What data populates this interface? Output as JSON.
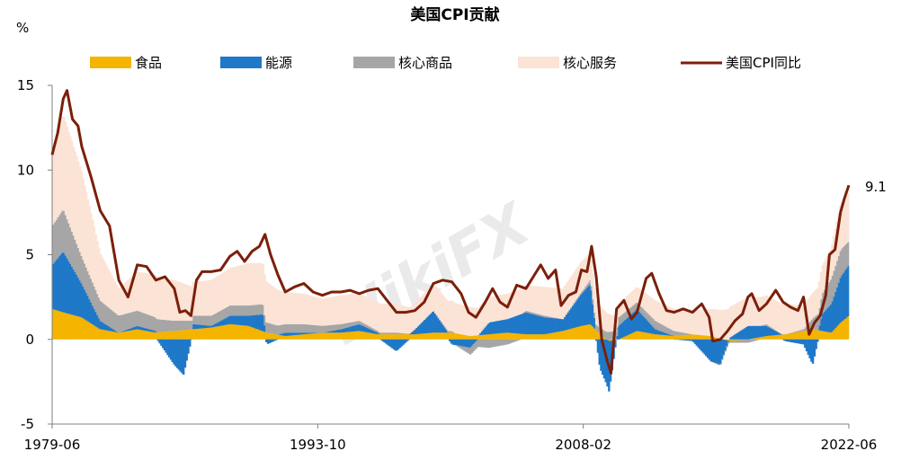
{
  "chart_data": {
    "type": "area",
    "title": "美国CPI贡献",
    "ylabel": "%",
    "ylim": [
      -5,
      15
    ],
    "yticks": [
      "15",
      "10",
      "5",
      "0",
      "-5"
    ],
    "xticks": [
      "1979-06",
      "1993-10",
      "2008-02",
      "2022-06"
    ],
    "x_start": "1979-06",
    "x_end": "2022-06",
    "legend": [
      {
        "name": "食品",
        "color": "#f5b400"
      },
      {
        "name": "能源",
        "color": "#1f78c8"
      },
      {
        "name": "核心商品",
        "color": "#a6a6a6"
      },
      {
        "name": "核心服务",
        "color": "#fbe3d6"
      },
      {
        "name": "美国CPI同比",
        "color": "#7b1f0a"
      }
    ],
    "annotation": "9.1",
    "watermark": "WikiFX",
    "series": [
      {
        "name": "食品",
        "color": "#f5b400",
        "x": [
          1979.4,
          1980,
          1981,
          1982,
          1983,
          1984,
          1985,
          1986,
          1987,
          1988,
          1989,
          1990,
          1991,
          1992,
          1993,
          1994,
          1995,
          1996,
          1997,
          1998,
          1999,
          2000,
          2001,
          2002,
          2003,
          2004,
          2005,
          2006,
          2007,
          2008,
          2008.5,
          2009,
          2009.5,
          2010,
          2011,
          2012,
          2013,
          2014,
          2015,
          2016,
          2017,
          2018,
          2019,
          2020,
          2020.5,
          2021,
          2021.5,
          2022,
          2022.45
        ],
        "values": [
          1.8,
          1.6,
          1.3,
          0.6,
          0.4,
          0.6,
          0.4,
          0.5,
          0.6,
          0.7,
          0.9,
          0.8,
          0.4,
          0.2,
          0.3,
          0.4,
          0.4,
          0.5,
          0.3,
          0.3,
          0.3,
          0.4,
          0.4,
          0.2,
          0.3,
          0.4,
          0.3,
          0.3,
          0.5,
          0.8,
          0.9,
          0.3,
          -0.1,
          0.0,
          0.5,
          0.3,
          0.2,
          0.3,
          0.2,
          -0.1,
          0.0,
          0.2,
          0.3,
          0.5,
          0.6,
          0.5,
          0.4,
          1.0,
          1.4
        ]
      },
      {
        "name": "能源",
        "color": "#1f78c8",
        "x": [
          1979.4,
          1980,
          1981,
          1982,
          1983,
          1984,
          1985,
          1986,
          1986.5,
          1987,
          1988,
          1989,
          1990,
          1990.8,
          1991,
          1992,
          1993,
          1994,
          1995,
          1996,
          1997,
          1998,
          1999,
          2000,
          2001,
          2002,
          2003,
          2004,
          2005,
          2006,
          2007,
          2008,
          2008.5,
          2009,
          2009.5,
          2010,
          2011,
          2012,
          2013,
          2014,
          2015,
          2015.5,
          2016,
          2017,
          2018,
          2019,
          2020,
          2020.5,
          2021,
          2021.5,
          2022,
          2022.45
        ],
        "values": [
          2.6,
          3.6,
          2.0,
          0.5,
          0.0,
          0.2,
          0.1,
          -1.5,
          -2.1,
          0.3,
          0.1,
          0.5,
          0.6,
          1.0,
          -0.3,
          0.2,
          0.1,
          0.0,
          0.2,
          0.4,
          0.1,
          -0.7,
          0.3,
          1.3,
          -0.3,
          -0.5,
          0.7,
          0.8,
          1.3,
          1.0,
          0.7,
          1.9,
          2.4,
          -1.7,
          -3.0,
          0.8,
          1.3,
          0.3,
          0.0,
          -0.1,
          -1.3,
          -1.5,
          0.1,
          0.8,
          0.6,
          -0.1,
          -0.3,
          -1.5,
          1.0,
          1.7,
          2.7,
          3.0
        ]
      },
      {
        "name": "核心商品",
        "color": "#a6a6a6",
        "x": [
          1979.4,
          1980,
          1981,
          1982,
          1983,
          1984,
          1985,
          1986,
          1987,
          1988,
          1989,
          1990,
          1991,
          1992,
          1993,
          1994,
          1995,
          1996,
          1997,
          1998,
          1999,
          2000,
          2001,
          2002,
          2003,
          2004,
          2005,
          2006,
          2007,
          2008,
          2009,
          2010,
          2011,
          2012,
          2013,
          2014,
          2015,
          2016,
          2017,
          2018,
          2019,
          2020,
          2021,
          2021.5,
          2022,
          2022.45
        ],
        "values": [
          2.3,
          2.5,
          1.6,
          1.2,
          1.0,
          0.9,
          0.8,
          0.6,
          0.5,
          0.6,
          0.6,
          0.6,
          0.6,
          0.5,
          0.5,
          0.4,
          0.3,
          0.2,
          0.1,
          0.1,
          0.0,
          0.0,
          0.1,
          -0.4,
          -0.5,
          -0.3,
          0.1,
          0.1,
          0.0,
          0.1,
          0.4,
          0.5,
          0.4,
          0.5,
          0.3,
          0.0,
          0.0,
          -0.1,
          -0.2,
          0.1,
          0.0,
          0.1,
          1.2,
          1.5,
          1.6,
          1.4
        ]
      },
      {
        "name": "核心服务",
        "color": "#fbe3d6",
        "x": [
          1979.4,
          1980,
          1981,
          1982,
          1983,
          1984,
          1985,
          1986,
          1987,
          1988,
          1989,
          1990,
          1991,
          1992,
          1993,
          1994,
          1995,
          1996,
          1997,
          1998,
          1999,
          2000,
          2001,
          2002,
          2003,
          2004,
          2005,
          2006,
          2007,
          2008,
          2009,
          2010,
          2011,
          2012,
          2013,
          2014,
          2015,
          2016,
          2017,
          2018,
          2019,
          2020,
          2021,
          2021.5,
          2022,
          2022.45
        ],
        "values": [
          4.2,
          5.6,
          5.0,
          2.8,
          1.6,
          2.3,
          2.5,
          2.4,
          2.0,
          2.1,
          2.2,
          2.5,
          2.4,
          1.9,
          1.8,
          1.6,
          1.7,
          1.6,
          1.7,
          1.7,
          1.5,
          1.6,
          1.8,
          1.7,
          1.5,
          1.5,
          1.5,
          1.7,
          1.8,
          1.8,
          1.3,
          0.8,
          0.9,
          1.2,
          1.3,
          1.4,
          1.6,
          1.8,
          1.7,
          1.7,
          1.8,
          1.4,
          1.6,
          1.8,
          2.7,
          2.9
        ]
      },
      {
        "name": "美国CPI同比",
        "color": "#7b1f0a",
        "x": [
          1979.4,
          1979.7,
          1980.0,
          1980.2,
          1980.5,
          1980.8,
          1981.0,
          1981.5,
          1982.0,
          1982.5,
          1983.0,
          1983.5,
          1984.0,
          1984.5,
          1985.0,
          1985.5,
          1986.0,
          1986.3,
          1986.6,
          1986.9,
          1987.2,
          1987.5,
          1988.0,
          1988.5,
          1989.0,
          1989.4,
          1989.8,
          1990.2,
          1990.6,
          1990.9,
          1991.2,
          1991.6,
          1992.0,
          1992.5,
          1993.0,
          1993.5,
          1994.0,
          1994.5,
          1995.0,
          1995.5,
          1996.0,
          1996.5,
          1997.0,
          1997.5,
          1998.0,
          1998.5,
          1999.0,
          1999.5,
          2000.0,
          2000.5,
          2001.0,
          2001.5,
          2001.9,
          2002.3,
          2002.8,
          2003.2,
          2003.6,
          2004.0,
          2004.5,
          2005.0,
          2005.4,
          2005.8,
          2006.2,
          2006.6,
          2006.9,
          2007.3,
          2007.7,
          2008.0,
          2008.3,
          2008.55,
          2008.8,
          2009.1,
          2009.4,
          2009.6,
          2009.9,
          2010.3,
          2010.7,
          2011.0,
          2011.5,
          2011.8,
          2012.2,
          2012.6,
          2013.0,
          2013.5,
          2014.0,
          2014.5,
          2014.9,
          2015.1,
          2015.5,
          2015.9,
          2016.3,
          2016.7,
          2017.0,
          2017.2,
          2017.6,
          2018.0,
          2018.5,
          2018.9,
          2019.3,
          2019.7,
          2020.0,
          2020.3,
          2020.6,
          2020.9,
          2021.2,
          2021.4,
          2021.7,
          2022.0,
          2022.2,
          2022.45
        ],
        "values": [
          10.9,
          12.2,
          14.2,
          14.7,
          13.0,
          12.6,
          11.4,
          9.6,
          7.6,
          6.7,
          3.5,
          2.5,
          4.4,
          4.3,
          3.5,
          3.7,
          3.0,
          1.6,
          1.7,
          1.4,
          3.5,
          4.0,
          4.0,
          4.1,
          4.9,
          5.2,
          4.6,
          5.2,
          5.5,
          6.2,
          5.0,
          3.8,
          2.8,
          3.1,
          3.3,
          2.8,
          2.6,
          2.8,
          2.8,
          2.9,
          2.7,
          2.9,
          3.0,
          2.3,
          1.6,
          1.6,
          1.7,
          2.2,
          3.3,
          3.5,
          3.4,
          2.7,
          1.6,
          1.3,
          2.2,
          3.0,
          2.2,
          1.9,
          3.2,
          3.0,
          3.7,
          4.4,
          3.6,
          4.1,
          2.0,
          2.6,
          2.8,
          4.1,
          4.0,
          5.5,
          3.7,
          0.0,
          -1.3,
          -2.0,
          1.8,
          2.3,
          1.2,
          1.6,
          3.6,
          3.9,
          2.7,
          1.7,
          1.6,
          1.8,
          1.6,
          2.1,
          1.3,
          -0.1,
          0.0,
          0.5,
          1.1,
          1.5,
          2.5,
          2.7,
          1.7,
          2.1,
          2.9,
          2.2,
          1.9,
          1.7,
          2.5,
          0.3,
          1.0,
          1.4,
          2.6,
          5.0,
          5.3,
          7.5,
          8.3,
          9.1
        ]
      }
    ]
  }
}
